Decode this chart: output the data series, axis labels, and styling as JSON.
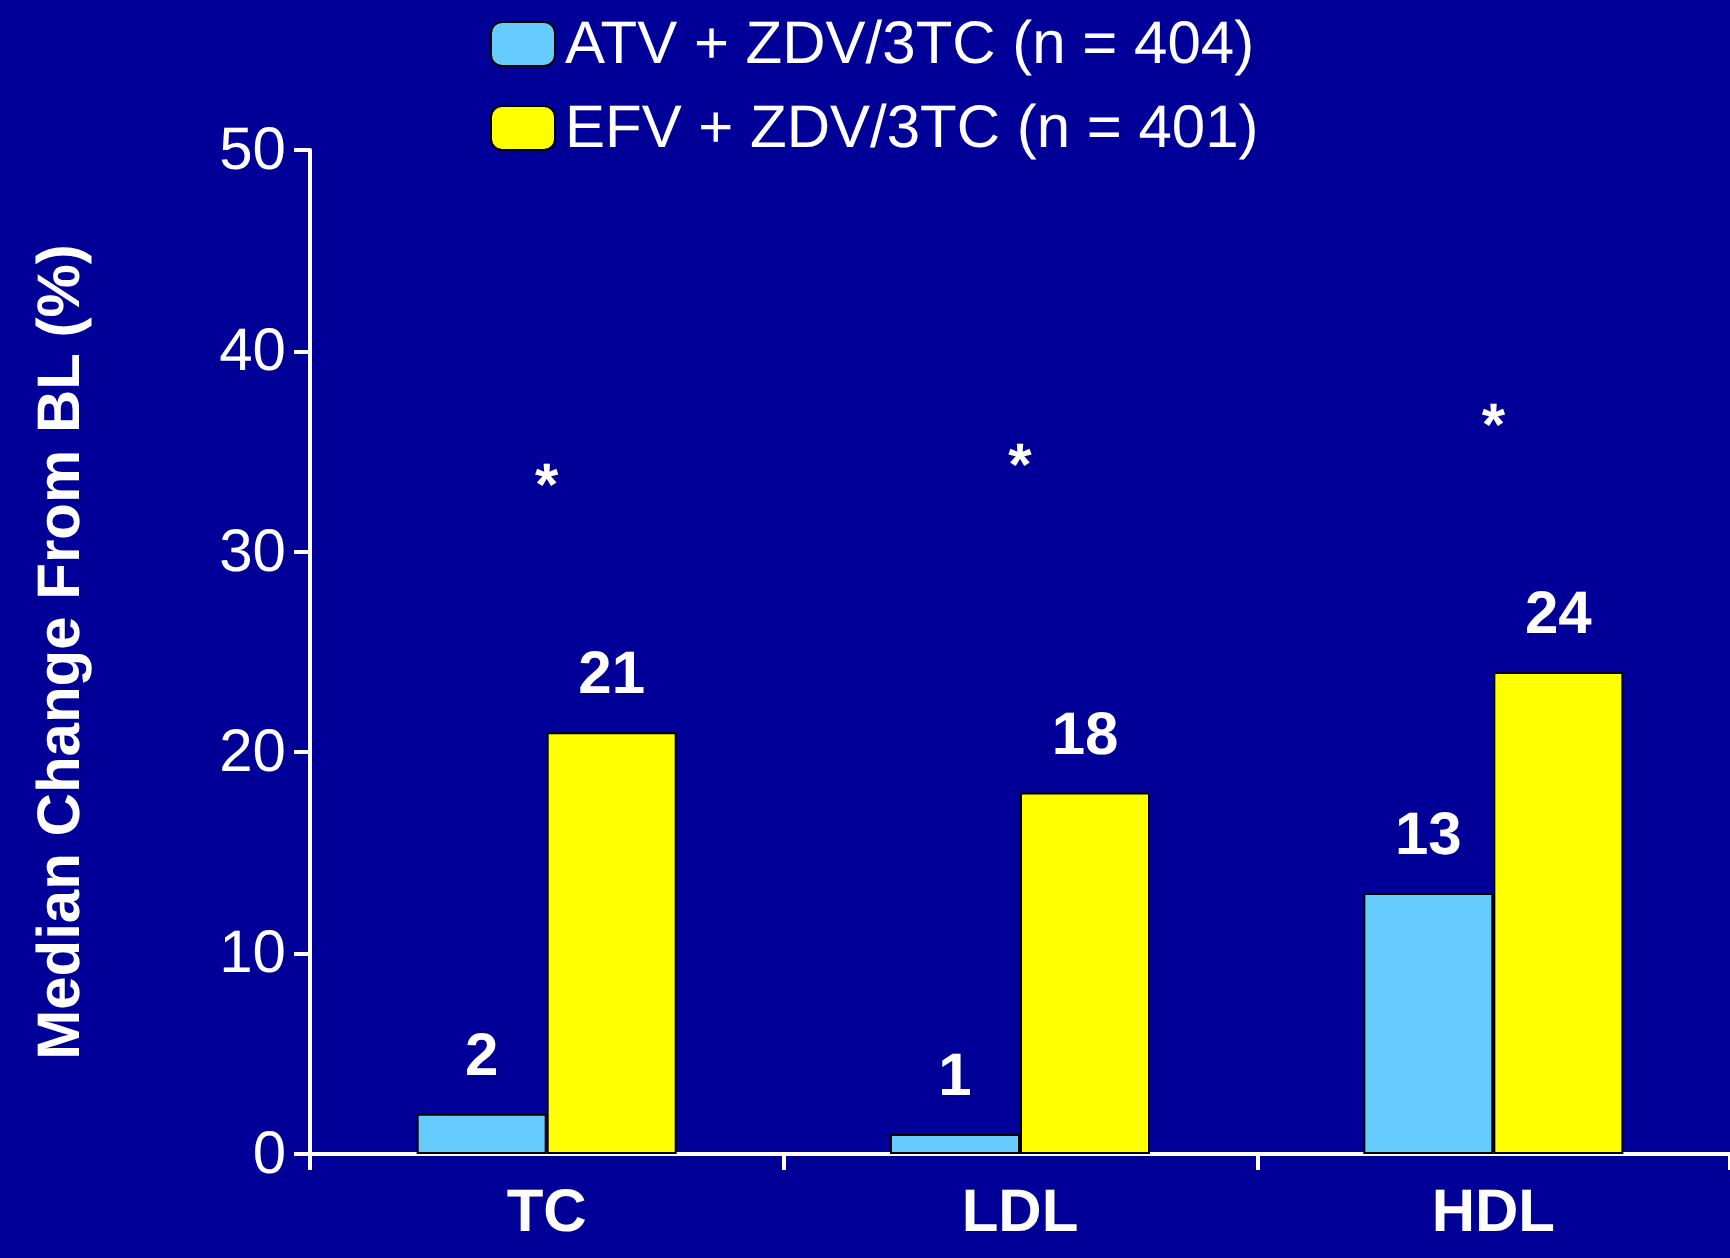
{
  "chart_data": {
    "type": "bar",
    "ylabel": "Median Change From BL (%)",
    "categories": [
      "TC",
      "LDL",
      "HDL"
    ],
    "series": [
      {
        "name": "ATV + ZDV/3TC (n = 404)",
        "color": "#66ccff",
        "values": [
          2,
          1,
          13
        ]
      },
      {
        "name": "EFV + ZDV/3TC (n = 401)",
        "color": "#ffff00",
        "values": [
          21,
          18,
          24
        ]
      }
    ],
    "ylim": [
      0,
      50
    ],
    "yticks": [
      0,
      10,
      20,
      30,
      40,
      50
    ],
    "data_labels": true,
    "legend": "top",
    "grid": false,
    "annotations": [
      "*",
      "*",
      "*"
    ]
  }
}
